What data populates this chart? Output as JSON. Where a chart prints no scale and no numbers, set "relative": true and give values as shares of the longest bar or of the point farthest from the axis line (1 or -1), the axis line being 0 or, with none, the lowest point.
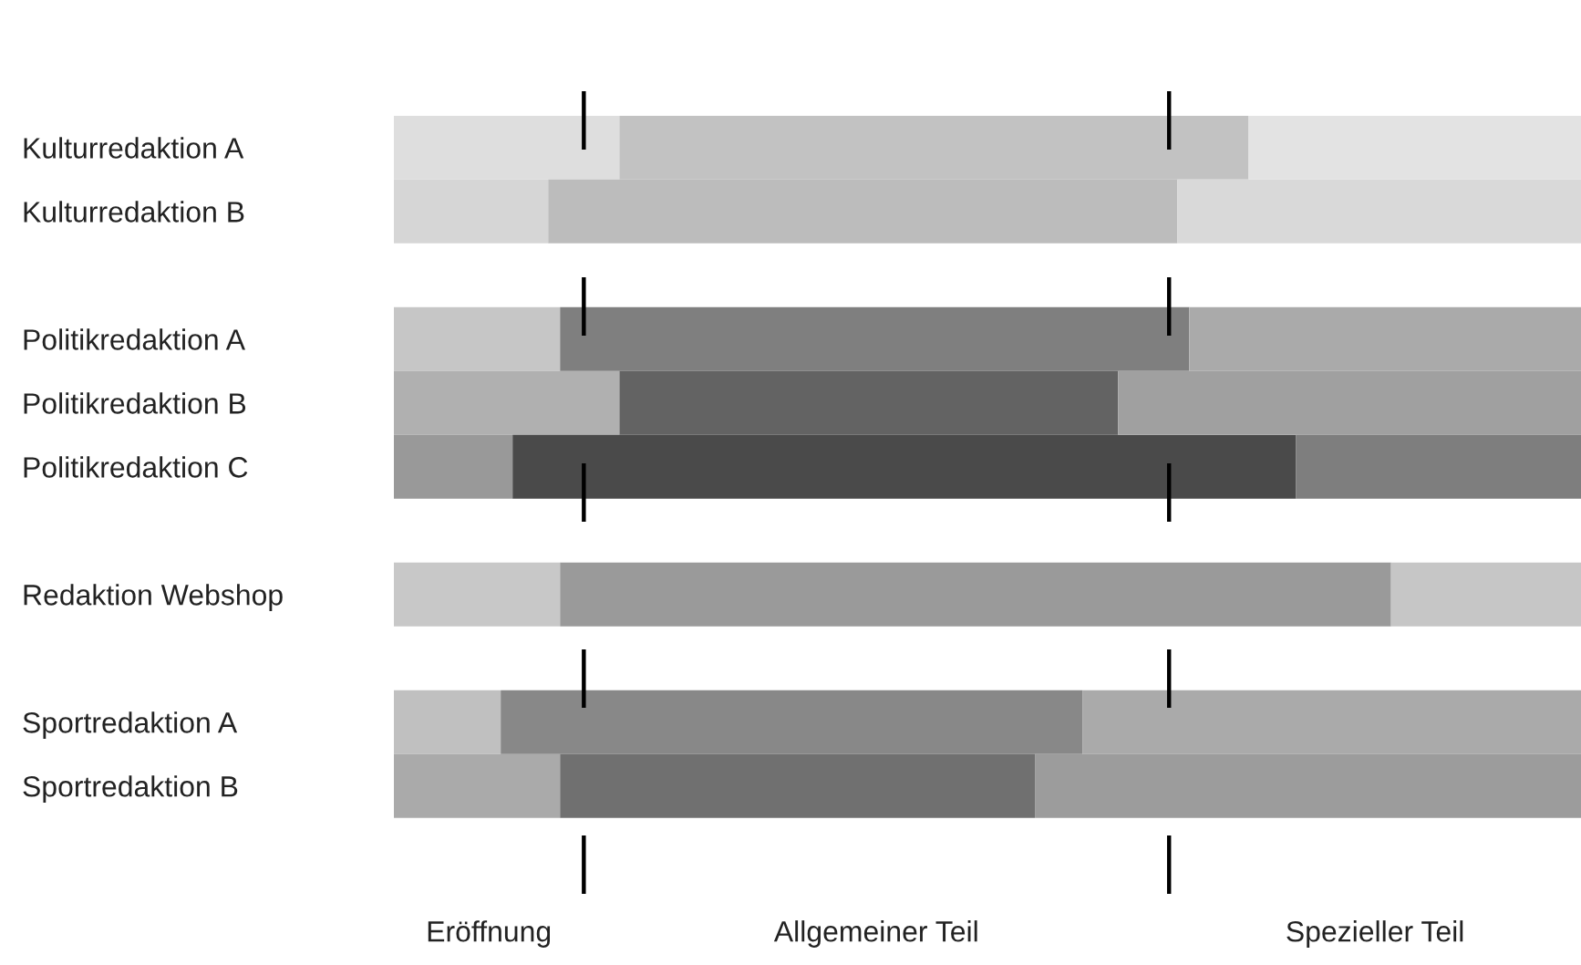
{
  "chart_data": {
    "type": "bar",
    "orientation": "horizontal",
    "stacked": true,
    "relative": true,
    "categories": [
      "Kulturredaktion A",
      "Kulturredaktion B",
      null,
      "Politikredaktion A",
      "Politikredaktion B",
      "Politikredaktion C",
      null,
      "Redaktion Webshop",
      null,
      "Sportredaktion A",
      "Sportredaktion B"
    ],
    "series": [
      {
        "values": [
          0.19,
          0.13,
          null,
          0.14,
          0.19,
          0.1,
          null,
          0.14,
          null,
          0.09,
          0.14
        ],
        "colors": [
          "#dedede",
          "#d6d6d6",
          null,
          "#c6c6c6",
          "#b0b0b0",
          "#999999",
          null,
          "#c8c8c8",
          null,
          "#c0c0c0",
          "#aaaaaa"
        ]
      },
      {
        "values": [
          0.53,
          0.53,
          null,
          0.53,
          0.42,
          0.66,
          null,
          0.7,
          null,
          0.49,
          0.4
        ],
        "colors": [
          "#c2c2c2",
          "#bcbcbc",
          null,
          "#7f7f7f",
          "#636363",
          "#4a4a4a",
          null,
          "#9a9a9a",
          null,
          "#888888",
          "#707070"
        ]
      },
      {
        "values": [
          0.28,
          0.34,
          null,
          0.33,
          0.39,
          0.24,
          null,
          0.16,
          null,
          0.42,
          0.46
        ],
        "colors": [
          "#e3e3e3",
          "#d9d9d9",
          null,
          "#aaaaaa",
          "#a0a0a0",
          "#7e7e7e",
          null,
          "#c6c6c6",
          null,
          "#aaaaaa",
          "#9c9c9c"
        ]
      }
    ],
    "ref_lines": [
      {
        "axis": "x",
        "value": 0.16,
        "color": "#000000",
        "line_style": "dashed"
      },
      {
        "axis": "x",
        "value": 0.653,
        "color": "#000000",
        "line_style": "dashed"
      }
    ],
    "annotations": [
      "Eröffnung",
      "Allgemeiner Teil",
      "Spezieller Teil"
    ],
    "grid": false,
    "legend": false
  }
}
